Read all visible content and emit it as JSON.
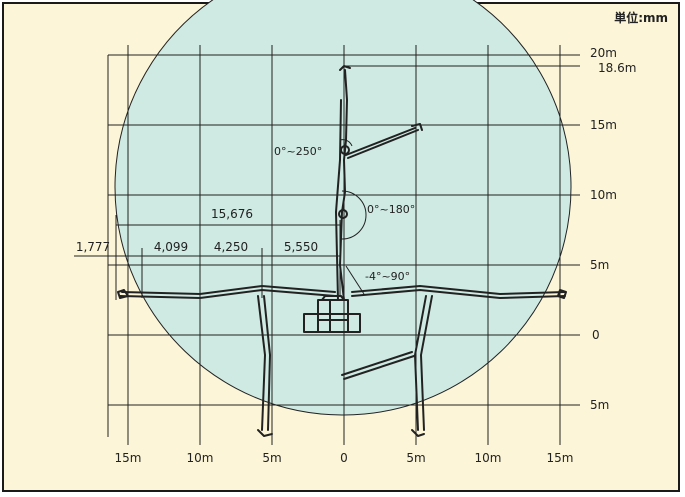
{
  "unit_label": "単位:mm",
  "colors": {
    "background": "#FCF5D8",
    "reach_area": "#CFE9E3",
    "line": "#222222",
    "frame": "#1A1A1A"
  },
  "axis": {
    "y_ticks": [
      {
        "value": 20,
        "label": "20m"
      },
      {
        "value": 18.6,
        "label": "18.6m"
      },
      {
        "value": 15,
        "label": "15m"
      },
      {
        "value": 10,
        "label": "10m"
      },
      {
        "value": 5,
        "label": "5m"
      },
      {
        "value": 0,
        "label": "0"
      },
      {
        "value": -5,
        "label": "5m"
      }
    ],
    "x_ticks": [
      {
        "value": -15,
        "label": "15m"
      },
      {
        "value": -10,
        "label": "10m"
      },
      {
        "value": -5,
        "label": "5m"
      },
      {
        "value": 0,
        "label": "0"
      },
      {
        "value": 5,
        "label": "5m"
      },
      {
        "value": 10,
        "label": "10m"
      },
      {
        "value": 15,
        "label": "15m"
      }
    ]
  },
  "dimensions": {
    "total": "15,676",
    "segments": [
      "1,777",
      "4,099",
      "4,250",
      "5,550"
    ]
  },
  "angles": {
    "boom1": "-4°~90°",
    "boom2": "0°~180°",
    "boom3": "0°~250°"
  }
}
